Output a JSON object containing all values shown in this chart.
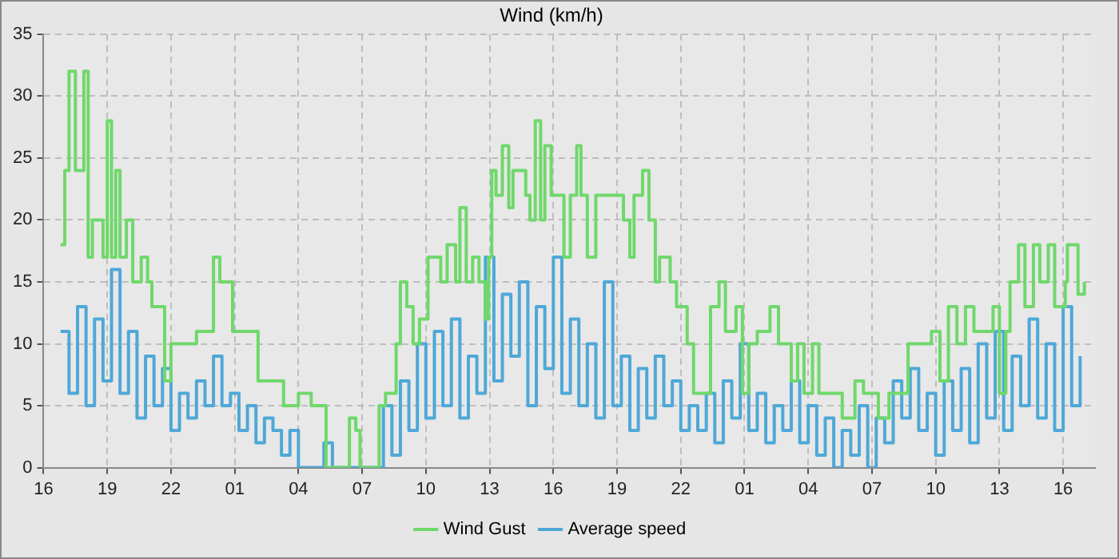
{
  "chart_data": {
    "type": "step",
    "title": "Wind (km/h)",
    "xlim": [
      "--01-01T16:00",
      "--01-03T17:30"
    ],
    "xticks": [
      {
        "value": "--01-01T16:00",
        "label": "16"
      },
      {
        "value": "--01-01T19:00",
        "label": "19"
      },
      {
        "value": "--01-01T22:00",
        "label": "22"
      },
      {
        "value": "--01-02T01:00",
        "label": "01"
      },
      {
        "value": "--01-02T04:00",
        "label": "04"
      },
      {
        "value": "--01-02T07:00",
        "label": "07"
      },
      {
        "value": "--01-02T10:00",
        "label": "10"
      },
      {
        "value": "--01-02T13:00",
        "label": "13"
      },
      {
        "value": "--01-02T16:00",
        "label": "16"
      },
      {
        "value": "--01-02T19:00",
        "label": "19"
      },
      {
        "value": "--01-02T22:00",
        "label": "22"
      },
      {
        "value": "--01-03T01:00",
        "label": "01"
      },
      {
        "value": "--01-03T04:00",
        "label": "04"
      },
      {
        "value": "--01-03T07:00",
        "label": "07"
      },
      {
        "value": "--01-03T10:00",
        "label": "10"
      },
      {
        "value": "--01-03T13:00",
        "label": "13"
      },
      {
        "value": "--01-03T16:00",
        "label": "16"
      }
    ],
    "ylim": [
      0,
      35
    ],
    "yticks": [
      0,
      5,
      10,
      15,
      20,
      25,
      30,
      35
    ],
    "grid": true,
    "legend": "bottom",
    "marker": "none",
    "line_style": "solid",
    "series": [
      {
        "name": "Wind Gust",
        "color": "#6fd86b",
        "x": [
          "--01-01T16:48",
          "--01-01T17:00",
          "--01-01T17:12",
          "--01-01T17:30",
          "--01-01T17:54",
          "--01-01T18:06",
          "--01-01T18:18",
          "--01-01T18:48",
          "--01-01T19:00",
          "--01-01T19:12",
          "--01-01T19:24",
          "--01-01T19:36",
          "--01-01T19:54",
          "--01-01T20:12",
          "--01-01T20:36",
          "--01-01T20:54",
          "--01-01T21:06",
          "--01-01T21:42",
          "--01-01T22:00",
          "--01-01T22:18",
          "--01-01T23:12",
          "--01-01T23:48",
          "--01-02T00:00",
          "--01-02T00:18",
          "--01-02T00:42",
          "--01-02T00:54",
          "--01-02T01:48",
          "--01-02T02:06",
          "--01-02T02:48",
          "--01-02T03:18",
          "--01-02T04:00",
          "--01-02T04:18",
          "--01-02T04:36",
          "--01-02T05:18",
          "--01-02T06:24",
          "--01-02T06:42",
          "--01-02T06:54",
          "--01-02T07:48",
          "--01-02T08:06",
          "--01-02T08:36",
          "--01-02T08:48",
          "--01-02T09:06",
          "--01-02T09:24",
          "--01-02T09:42",
          "--01-02T10:06",
          "--01-02T10:42",
          "--01-02T11:00",
          "--01-02T11:24",
          "--01-02T11:36",
          "--01-02T11:54",
          "--01-02T12:12",
          "--01-02T12:30",
          "--01-02T12:48",
          "--01-02T12:57",
          "--01-02T13:06",
          "--01-02T13:18",
          "--01-02T13:36",
          "--01-02T13:54",
          "--01-02T14:06",
          "--01-02T14:42",
          "--01-02T14:54",
          "--01-02T15:09",
          "--01-02T15:24",
          "--01-02T15:36",
          "--01-02T15:54",
          "--01-02T16:18",
          "--01-02T16:30",
          "--01-02T16:48",
          "--01-02T17:06",
          "--01-02T17:18",
          "--01-02T17:36",
          "--01-02T18:00",
          "--01-02T19:18",
          "--01-02T19:36",
          "--01-02T19:48",
          "--01-02T20:12",
          "--01-02T20:30",
          "--01-02T20:48",
          "--01-02T21:00",
          "--01-02T21:30",
          "--01-02T21:48",
          "--01-02T22:18",
          "--01-02T22:36",
          "--01-02T23:24",
          "--01-02T23:48",
          "--01-03T00:06",
          "--01-03T00:36",
          "--01-03T00:54",
          "--01-03T01:12",
          "--01-03T01:36",
          "--01-03T02:12",
          "--01-03T02:36",
          "--01-03T03:12",
          "--01-03T03:30",
          "--01-03T03:48",
          "--01-03T04:12",
          "--01-03T04:30",
          "--01-03T05:18",
          "--01-03T05:36",
          "--01-03T06:12",
          "--01-03T06:36",
          "--01-03T07:18",
          "--01-03T07:48",
          "--01-03T08:42",
          "--01-03T09:48",
          "--01-03T10:12",
          "--01-03T10:36",
          "--01-03T11:00",
          "--01-03T11:24",
          "--01-03T11:48",
          "--01-03T12:42",
          "--01-03T13:00",
          "--01-03T13:18",
          "--01-03T13:30",
          "--01-03T13:54",
          "--01-03T14:12",
          "--01-03T14:36",
          "--01-03T14:54",
          "--01-03T15:18",
          "--01-03T15:36",
          "--01-03T16:06",
          "--01-03T16:12",
          "--01-03T16:42",
          "--01-03T17:00"
        ],
        "values": [
          18,
          24,
          32,
          24,
          32,
          17,
          20,
          17,
          28,
          17,
          24,
          17,
          20,
          15,
          17,
          15,
          13,
          7,
          10,
          10,
          11,
          11,
          17,
          15,
          15,
          11,
          11,
          7,
          7,
          5,
          6,
          6,
          5,
          0,
          4,
          3,
          0,
          5,
          6,
          10,
          15,
          13,
          10,
          12,
          17,
          15,
          18,
          15,
          21,
          15,
          17,
          15,
          12,
          17,
          24,
          22,
          26,
          21,
          24,
          22,
          20,
          28,
          20,
          26,
          22,
          22,
          17,
          22,
          26,
          22,
          17,
          22,
          20,
          17,
          22,
          24,
          20,
          15,
          17,
          15,
          13,
          10,
          6,
          13,
          15,
          11,
          13,
          6,
          10,
          11,
          13,
          10,
          7,
          10,
          6,
          10,
          6,
          6,
          4,
          7,
          6,
          4,
          6,
          10,
          11,
          7,
          13,
          10,
          13,
          11,
          13,
          6,
          11,
          15,
          18,
          13,
          18,
          15,
          18,
          13,
          15,
          18,
          14,
          15
        ]
      },
      {
        "name": "Average speed",
        "color": "#4ea8d8",
        "x": [
          "--01-01T16:48",
          "--01-01T17:12",
          "--01-01T17:36",
          "--01-01T18:00",
          "--01-01T18:24",
          "--01-01T18:48",
          "--01-01T19:12",
          "--01-01T19:36",
          "--01-01T20:00",
          "--01-01T20:24",
          "--01-01T20:48",
          "--01-01T21:12",
          "--01-01T21:36",
          "--01-01T22:00",
          "--01-01T22:24",
          "--01-01T22:48",
          "--01-01T23:12",
          "--01-01T23:36",
          "--01-02T00:00",
          "--01-02T00:24",
          "--01-02T00:48",
          "--01-02T01:12",
          "--01-02T01:36",
          "--01-02T02:00",
          "--01-02T02:24",
          "--01-02T02:48",
          "--01-02T03:12",
          "--01-02T03:36",
          "--01-02T04:00",
          "--01-02T04:24",
          "--01-02T04:48",
          "--01-02T05:12",
          "--01-02T05:36",
          "--01-02T06:00",
          "--01-02T06:24",
          "--01-02T06:48",
          "--01-02T07:12",
          "--01-02T07:36",
          "--01-02T08:00",
          "--01-02T08:24",
          "--01-02T08:48",
          "--01-02T09:12",
          "--01-02T09:36",
          "--01-02T10:00",
          "--01-02T10:24",
          "--01-02T10:48",
          "--01-02T11:12",
          "--01-02T11:36",
          "--01-02T12:00",
          "--01-02T12:24",
          "--01-02T12:48",
          "--01-02T13:12",
          "--01-02T13:36",
          "--01-02T14:00",
          "--01-02T14:24",
          "--01-02T14:48",
          "--01-02T15:12",
          "--01-02T15:36",
          "--01-02T16:00",
          "--01-02T16:24",
          "--01-02T16:48",
          "--01-02T17:12",
          "--01-02T17:36",
          "--01-02T18:00",
          "--01-02T18:24",
          "--01-02T18:48",
          "--01-02T19:12",
          "--01-02T19:36",
          "--01-02T20:00",
          "--01-02T20:24",
          "--01-02T20:48",
          "--01-02T21:12",
          "--01-02T21:36",
          "--01-02T22:00",
          "--01-02T22:24",
          "--01-02T22:48",
          "--01-02T23:12",
          "--01-02T23:36",
          "--01-03T00:00",
          "--01-03T00:24",
          "--01-03T00:48",
          "--01-03T01:12",
          "--01-03T01:36",
          "--01-03T02:00",
          "--01-03T02:24",
          "--01-03T02:48",
          "--01-03T03:12",
          "--01-03T03:36",
          "--01-03T04:00",
          "--01-03T04:24",
          "--01-03T04:48",
          "--01-03T05:12",
          "--01-03T05:36",
          "--01-03T06:00",
          "--01-03T06:24",
          "--01-03T06:48",
          "--01-03T07:12",
          "--01-03T07:36",
          "--01-03T08:00",
          "--01-03T08:24",
          "--01-03T08:48",
          "--01-03T09:12",
          "--01-03T09:36",
          "--01-03T10:00",
          "--01-03T10:24",
          "--01-03T10:48",
          "--01-03T11:12",
          "--01-03T11:36",
          "--01-03T12:00",
          "--01-03T12:24",
          "--01-03T12:48",
          "--01-03T13:12",
          "--01-03T13:36",
          "--01-03T14:00",
          "--01-03T14:24",
          "--01-03T14:48",
          "--01-03T15:12",
          "--01-03T15:36",
          "--01-03T16:00",
          "--01-03T16:24",
          "--01-03T16:48"
        ],
        "values": [
          11,
          6,
          13,
          5,
          12,
          7,
          16,
          6,
          11,
          4,
          9,
          5,
          8,
          3,
          6,
          4,
          7,
          5,
          9,
          5,
          6,
          3,
          5,
          2,
          4,
          3,
          1,
          3,
          0,
          0,
          0,
          2,
          0,
          0,
          0,
          0,
          0,
          0,
          5,
          1,
          7,
          3,
          10,
          4,
          11,
          5,
          12,
          4,
          9,
          6,
          17,
          7,
          14,
          9,
          15,
          5,
          13,
          8,
          17,
          6,
          12,
          5,
          10,
          4,
          15,
          5,
          9,
          3,
          8,
          4,
          9,
          5,
          7,
          3,
          5,
          3,
          6,
          2,
          7,
          4,
          10,
          3,
          6,
          2,
          5,
          3,
          7,
          2,
          5,
          1,
          4,
          0,
          3,
          1,
          5,
          0,
          4,
          2,
          7,
          4,
          8,
          3,
          6,
          1,
          7,
          3,
          8,
          2,
          10,
          4,
          11,
          3,
          9,
          5,
          12,
          4,
          10,
          3,
          13,
          5,
          9
        ]
      }
    ]
  }
}
